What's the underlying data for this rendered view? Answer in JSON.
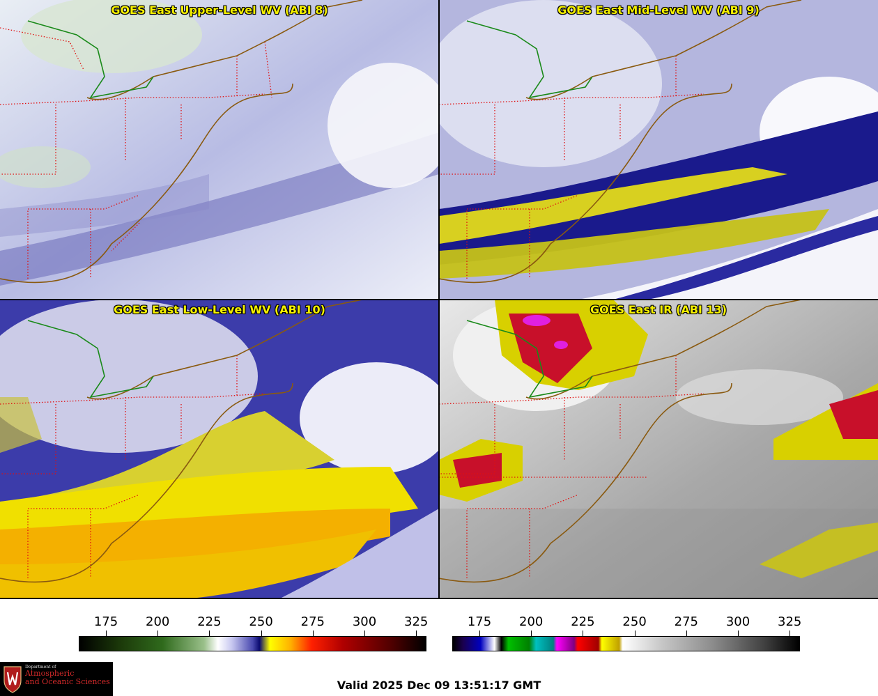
{
  "panels": {
    "upper": {
      "title": "GOES East Upper-Level WV (ABI 8)"
    },
    "mid": {
      "title": "GOES East Mid-Level WV (ABI 9)"
    },
    "low": {
      "title": "GOES East Low-Level WV (ABI 10)"
    },
    "ir": {
      "title": "GOES East IR (ABI 13)"
    }
  },
  "colorbars": {
    "wv": {
      "ticks": [
        "175",
        "200",
        "225",
        "250",
        "275",
        "300",
        "325"
      ]
    },
    "ir": {
      "ticks": [
        "175",
        "200",
        "225",
        "250",
        "275",
        "300",
        "325"
      ]
    }
  },
  "logo": {
    "department": "Department of",
    "line1": "Atmospheric",
    "line2": "and Oceanic Sciences"
  },
  "valid_time": "Valid 2025 Dec 09 13:51:17 GMT",
  "colors": {
    "border_state": "#e01010",
    "coastline": "#8a5a10",
    "canada_border": "#1a8a1a",
    "title": "#f5f000"
  }
}
